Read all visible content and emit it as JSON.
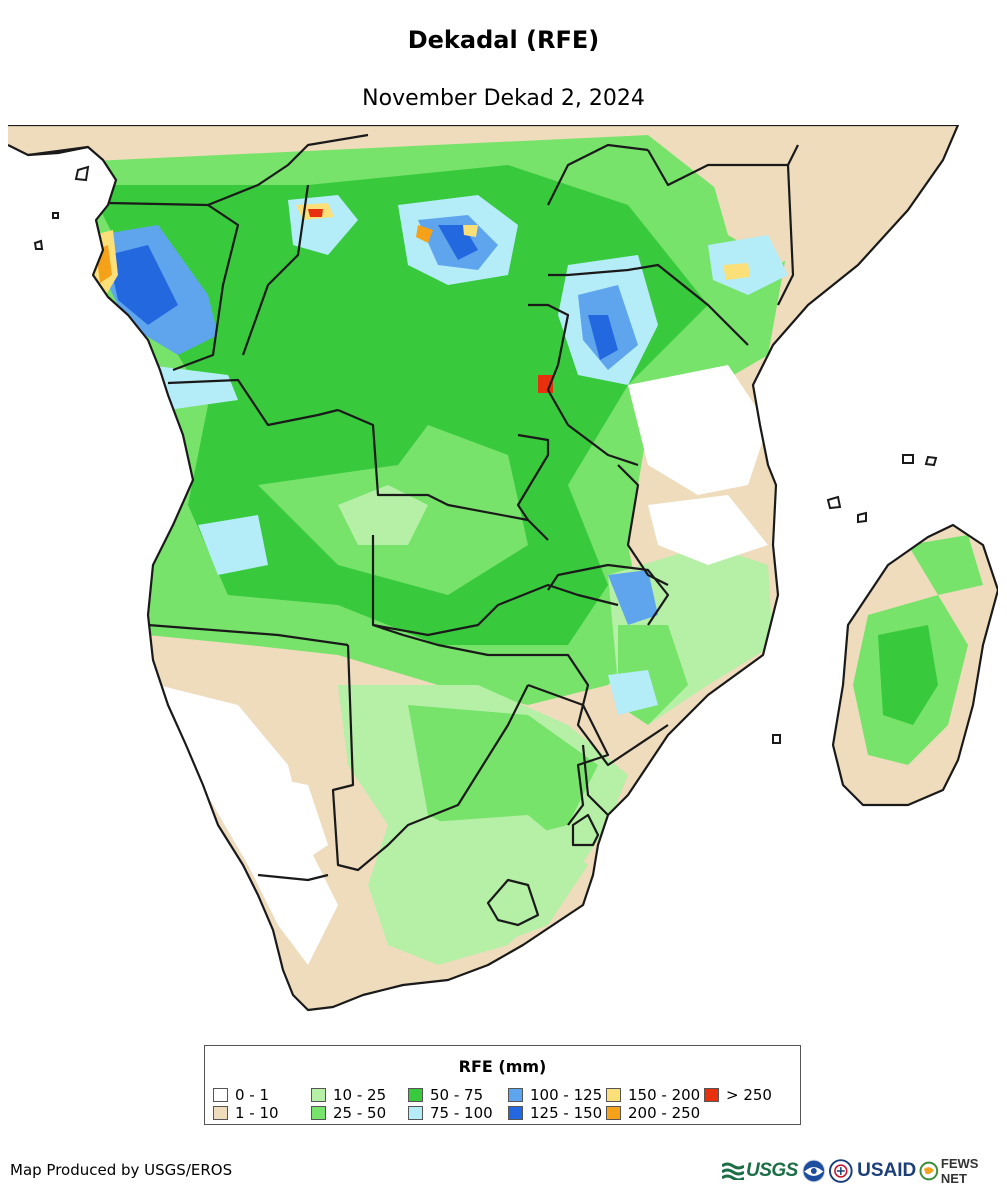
{
  "title": "Dekadal (RFE)",
  "subtitle": "November Dekad 2, 2024",
  "legend": {
    "title": "RFE (mm)",
    "items": [
      {
        "label": "0 - 1",
        "color": "#ffffff"
      },
      {
        "label": "1 - 10",
        "color": "#eedcbd"
      },
      {
        "label": "10 - 25",
        "color": "#b5f0a6"
      },
      {
        "label": "25 - 50",
        "color": "#77e36b"
      },
      {
        "label": "50 - 75",
        "color": "#38c93d"
      },
      {
        "label": "75 - 100",
        "color": "#b4ecf7"
      },
      {
        "label": "100 - 125",
        "color": "#5fa5ee"
      },
      {
        "label": "125 - 150",
        "color": "#2468e0"
      },
      {
        "label": "150 - 200",
        "color": "#fbe07a"
      },
      {
        "label": "200 - 250",
        "color": "#f5a21a"
      },
      {
        "label": "> 250",
        "color": "#e8300f"
      }
    ]
  },
  "footer": {
    "credit": "Map Produced by USGS/EROS",
    "logos": [
      "USGS",
      "NOAA",
      "USAID",
      "FEWS NET"
    ]
  },
  "logo_text": {
    "usgs": "USGS",
    "usaid": "USAID",
    "fews": "FEWS NET"
  },
  "map": {
    "region": "Southern Africa",
    "border_color": "#1a1a1a"
  }
}
